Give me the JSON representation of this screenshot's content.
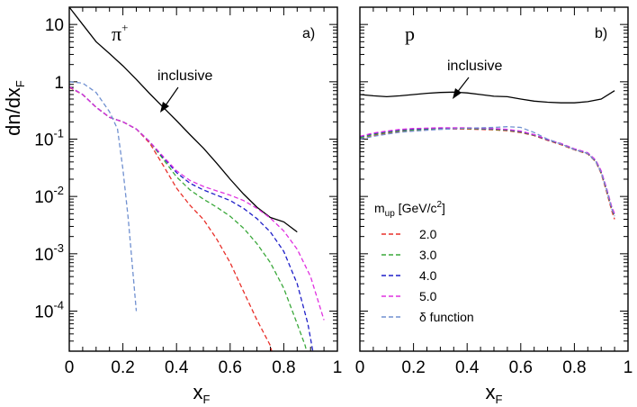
{
  "chart_data": {
    "type": "line",
    "ylabel": "dn/dx",
    "ylabel_sub": "F",
    "xlabel": "x",
    "xlabel_sub": "F",
    "yscale": "log",
    "ylim": [
      2e-05,
      20
    ],
    "xlim": [
      0,
      1
    ],
    "x_ticks": [
      "0",
      "0.2",
      "0.4",
      "0.6",
      "0.8",
      "1"
    ],
    "y_ticks": [
      {
        "base": "10",
        "exp": "",
        "value": 10
      },
      {
        "base": "1",
        "exp": "",
        "value": 1
      },
      {
        "base": "10",
        "exp": "-1",
        "value": 0.1
      },
      {
        "base": "10",
        "exp": "-2",
        "value": 0.01
      },
      {
        "base": "10",
        "exp": "-3",
        "value": 0.001
      },
      {
        "base": "10",
        "exp": "-4",
        "value": 0.0001
      }
    ],
    "legend": {
      "title": "m",
      "title_sub": "up",
      "title_unit": " [GeV/c",
      "title_unit_sup": "2",
      "title_unit_end": "]",
      "entries": [
        {
          "label": "2.0",
          "color": "#e8302a"
        },
        {
          "label": "3.0",
          "color": "#3aa83a"
        },
        {
          "label": "4.0",
          "color": "#1f1fc8"
        },
        {
          "label": "5.0",
          "color": "#e030e0"
        },
        {
          "label": "δ function",
          "color": "#7090d0"
        }
      ]
    },
    "panels": [
      {
        "id": "a",
        "panel_label": "a)",
        "particle": "π",
        "particle_sup": "+",
        "annotation": "inclusive",
        "series": [
          {
            "name": "inclusive",
            "color": "#000000",
            "dashed": false,
            "x": [
              0,
              0.05,
              0.1,
              0.15,
              0.2,
              0.25,
              0.3,
              0.35,
              0.4,
              0.45,
              0.5,
              0.55,
              0.6,
              0.65,
              0.7,
              0.75,
              0.8,
              0.85
            ],
            "y": [
              20,
              10,
              5,
              3.1,
              1.9,
              1.1,
              0.62,
              0.36,
              0.21,
              0.12,
              0.07,
              0.038,
              0.02,
              0.011,
              0.0065,
              0.0043,
              0.0036,
              0.0024
            ]
          },
          {
            "name": "2.0",
            "color": "#e8302a",
            "dashed": true,
            "x": [
              0,
              0.05,
              0.1,
              0.15,
              0.2,
              0.25,
              0.3,
              0.35,
              0.4,
              0.45,
              0.5,
              0.55,
              0.6,
              0.65,
              0.7,
              0.75,
              0.77
            ],
            "y": [
              0.8,
              0.6,
              0.36,
              0.24,
              0.2,
              0.15,
              0.085,
              0.035,
              0.014,
              0.007,
              0.004,
              0.0018,
              0.0007,
              0.00022,
              7e-05,
              2.5e-05,
              1e-05
            ]
          },
          {
            "name": "3.0",
            "color": "#3aa83a",
            "dashed": true,
            "x": [
              0,
              0.05,
              0.1,
              0.15,
              0.2,
              0.25,
              0.3,
              0.35,
              0.4,
              0.45,
              0.5,
              0.55,
              0.6,
              0.65,
              0.7,
              0.75,
              0.8,
              0.85,
              0.88,
              0.9
            ],
            "y": [
              0.82,
              0.6,
              0.36,
              0.24,
              0.2,
              0.15,
              0.09,
              0.045,
              0.022,
              0.013,
              0.009,
              0.0065,
              0.0045,
              0.0028,
              0.0015,
              0.0007,
              0.00025,
              6e-05,
              2.5e-05,
              1e-05
            ]
          },
          {
            "name": "4.0",
            "color": "#1f1fc8",
            "dashed": true,
            "x": [
              0,
              0.05,
              0.1,
              0.15,
              0.2,
              0.25,
              0.3,
              0.35,
              0.4,
              0.45,
              0.5,
              0.55,
              0.6,
              0.65,
              0.7,
              0.75,
              0.8,
              0.85,
              0.89,
              0.92
            ],
            "y": [
              0.82,
              0.6,
              0.36,
              0.24,
              0.2,
              0.15,
              0.09,
              0.048,
              0.026,
              0.017,
              0.013,
              0.0105,
              0.0085,
              0.0062,
              0.0041,
              0.0024,
              0.0011,
              0.0003,
              6e-05,
              1e-05
            ]
          },
          {
            "name": "5.0",
            "color": "#e030e0",
            "dashed": true,
            "x": [
              0,
              0.05,
              0.1,
              0.15,
              0.2,
              0.25,
              0.3,
              0.35,
              0.4,
              0.45,
              0.5,
              0.55,
              0.6,
              0.65,
              0.7,
              0.75,
              0.8,
              0.85,
              0.9,
              0.95
            ],
            "y": [
              0.82,
              0.6,
              0.36,
              0.24,
              0.2,
              0.15,
              0.09,
              0.05,
              0.028,
              0.019,
              0.015,
              0.0125,
              0.0105,
              0.0085,
              0.0062,
              0.0042,
              0.0025,
              0.0012,
              0.0004,
              7e-05
            ]
          },
          {
            "name": "δ function",
            "color": "#7090d0",
            "dashed": true,
            "x": [
              0,
              0.05,
              0.1,
              0.15,
              0.18,
              0.2,
              0.22,
              0.25
            ],
            "y": [
              1.0,
              0.95,
              0.65,
              0.3,
              0.15,
              0.03,
              0.004,
              0.0001
            ]
          }
        ]
      },
      {
        "id": "b",
        "panel_label": "b)",
        "particle": "p",
        "particle_sup": "",
        "annotation": "inclusive",
        "series": [
          {
            "name": "inclusive",
            "color": "#000000",
            "dashed": false,
            "x": [
              0,
              0.05,
              0.1,
              0.15,
              0.2,
              0.25,
              0.3,
              0.35,
              0.4,
              0.45,
              0.5,
              0.55,
              0.6,
              0.65,
              0.7,
              0.75,
              0.8,
              0.85,
              0.9,
              0.95
            ],
            "y": [
              0.6,
              0.57,
              0.55,
              0.57,
              0.6,
              0.63,
              0.65,
              0.66,
              0.64,
              0.6,
              0.56,
              0.55,
              0.5,
              0.46,
              0.44,
              0.43,
              0.43,
              0.45,
              0.5,
              0.7
            ]
          },
          {
            "name": "2.0",
            "color": "#e8302a",
            "dashed": true,
            "x": [
              0,
              0.05,
              0.1,
              0.15,
              0.2,
              0.3,
              0.4,
              0.5,
              0.55,
              0.6,
              0.65,
              0.7,
              0.75,
              0.8,
              0.85,
              0.88,
              0.9,
              0.92,
              0.94,
              0.95
            ],
            "y": [
              0.1,
              0.115,
              0.125,
              0.135,
              0.14,
              0.15,
              0.15,
              0.145,
              0.14,
              0.13,
              0.115,
              0.095,
              0.08,
              0.065,
              0.055,
              0.04,
              0.025,
              0.012,
              0.0055,
              0.004
            ]
          },
          {
            "name": "3.0",
            "color": "#3aa83a",
            "dashed": true,
            "x": [
              0,
              0.05,
              0.1,
              0.15,
              0.2,
              0.3,
              0.4,
              0.5,
              0.55,
              0.6,
              0.65,
              0.7,
              0.75,
              0.8,
              0.85,
              0.88,
              0.9,
              0.92,
              0.94,
              0.95
            ],
            "y": [
              0.105,
              0.12,
              0.13,
              0.14,
              0.145,
              0.153,
              0.153,
              0.148,
              0.143,
              0.133,
              0.117,
              0.097,
              0.082,
              0.066,
              0.056,
              0.041,
              0.026,
              0.013,
              0.006,
              0.0045
            ]
          },
          {
            "name": "4.0",
            "color": "#1f1fc8",
            "dashed": true,
            "x": [
              0,
              0.05,
              0.1,
              0.15,
              0.2,
              0.3,
              0.4,
              0.5,
              0.55,
              0.6,
              0.65,
              0.7,
              0.75,
              0.8,
              0.85,
              0.88,
              0.9,
              0.92,
              0.94,
              0.95
            ],
            "y": [
              0.11,
              0.125,
              0.135,
              0.145,
              0.15,
              0.156,
              0.156,
              0.151,
              0.146,
              0.136,
              0.119,
              0.098,
              0.083,
              0.067,
              0.057,
              0.042,
              0.027,
              0.0135,
              0.0062,
              0.0047
            ]
          },
          {
            "name": "5.0",
            "color": "#e030e0",
            "dashed": true,
            "x": [
              0,
              0.05,
              0.1,
              0.15,
              0.2,
              0.3,
              0.4,
              0.5,
              0.55,
              0.6,
              0.65,
              0.7,
              0.75,
              0.8,
              0.85,
              0.88,
              0.9,
              0.92,
              0.94,
              0.95
            ],
            "y": [
              0.112,
              0.128,
              0.138,
              0.148,
              0.153,
              0.158,
              0.158,
              0.153,
              0.148,
              0.138,
              0.12,
              0.099,
              0.084,
              0.068,
              0.058,
              0.043,
              0.028,
              0.014,
              0.0065,
              0.005
            ]
          },
          {
            "name": "δ function",
            "color": "#7090d0",
            "dashed": true,
            "x": [
              0,
              0.05,
              0.1,
              0.15,
              0.2,
              0.3,
              0.4,
              0.5,
              0.55,
              0.6,
              0.65,
              0.7,
              0.75,
              0.8,
              0.85,
              0.88,
              0.9,
              0.92,
              0.94,
              0.95
            ],
            "y": [
              0.1,
              0.112,
              0.122,
              0.132,
              0.138,
              0.148,
              0.155,
              0.16,
              0.165,
              0.16,
              0.13,
              0.1,
              0.082,
              0.066,
              0.056,
              0.041,
              0.026,
              0.013,
              0.006,
              0.0045
            ]
          }
        ]
      }
    ]
  }
}
